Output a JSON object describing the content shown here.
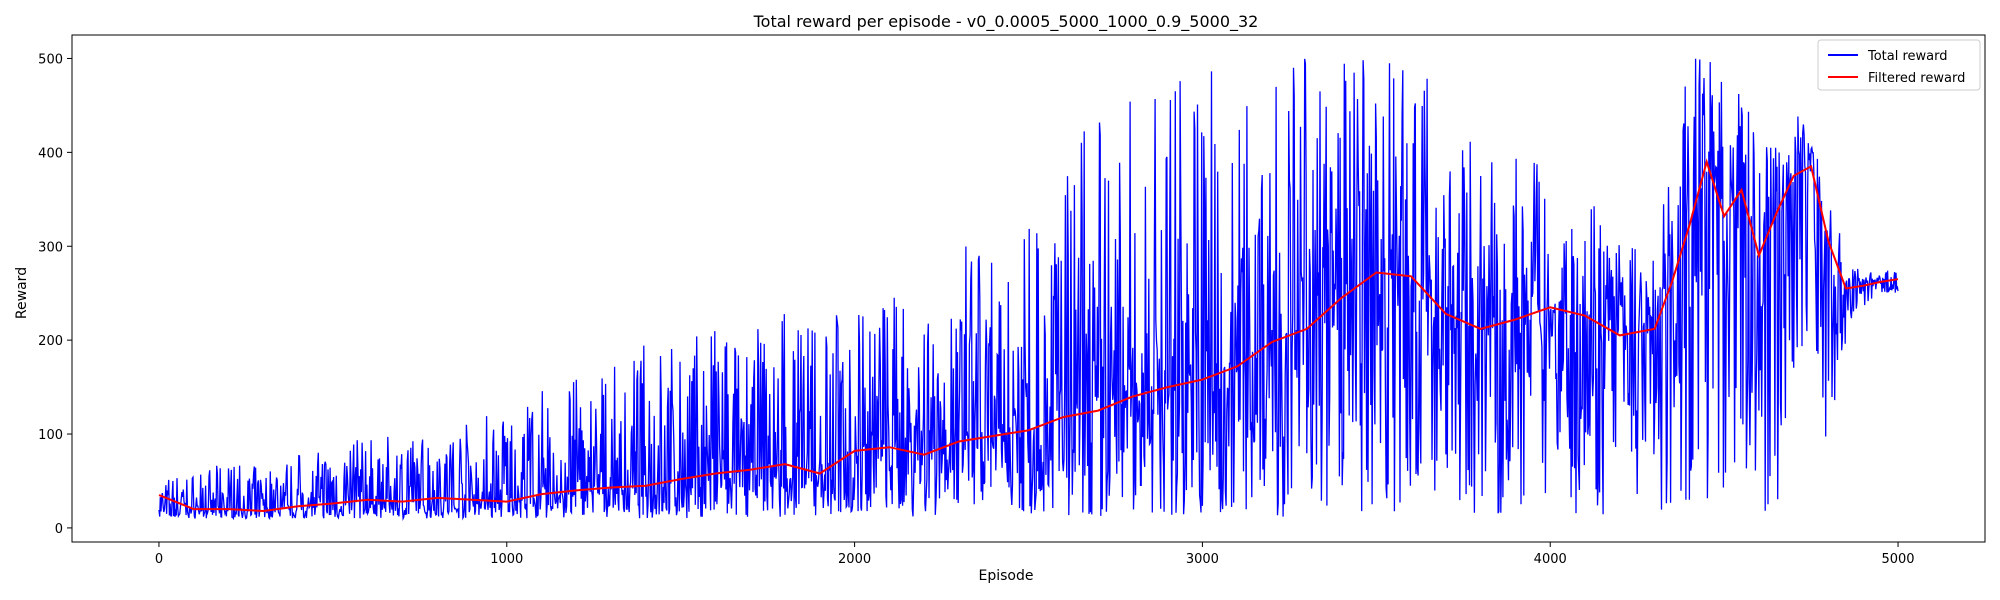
{
  "chart_data": {
    "type": "line",
    "title": "Total reward per episode - v0_0.0005_5000_1000_0.9_5000_32",
    "xlabel": "Episode",
    "ylabel": "Reward",
    "xlim": [
      -250,
      5250
    ],
    "ylim": [
      -15,
      525
    ],
    "xticks": [
      0,
      1000,
      2000,
      3000,
      4000,
      5000
    ],
    "yticks": [
      0,
      100,
      200,
      300,
      400,
      500
    ],
    "grid": false,
    "legend_position": "top-right",
    "series": [
      {
        "name": "Total reward",
        "color": "#0000ff",
        "x": [
          0,
          100,
          200,
          300,
          400,
          500,
          600,
          700,
          800,
          900,
          1000,
          1100,
          1200,
          1300,
          1400,
          1500,
          1600,
          1700,
          1800,
          1900,
          2000,
          2100,
          2200,
          2300,
          2400,
          2500,
          2600,
          2700,
          2800,
          2900,
          3000,
          3100,
          3200,
          3300,
          3400,
          3500,
          3600,
          3700,
          3800,
          3900,
          4000,
          4100,
          4200,
          4300,
          4350,
          4400,
          4450,
          4500,
          4550,
          4600,
          4650,
          4700,
          4750,
          4800,
          4850,
          4900,
          4950,
          5000
        ],
        "y": [
          20,
          19,
          20,
          18,
          22,
          25,
          28,
          27,
          30,
          29,
          28,
          35,
          40,
          42,
          46,
          55,
          58,
          62,
          65,
          60,
          85,
          88,
          80,
          95,
          100,
          105,
          125,
          130,
          145,
          150,
          160,
          175,
          200,
          215,
          250,
          275,
          265,
          225,
          210,
          220,
          230,
          225,
          205,
          210,
          265,
          320,
          385,
          330,
          360,
          300,
          330,
          370,
          380,
          300,
          255,
          260,
          262,
          265
        ],
        "envelope_low": [
          10,
          10,
          10,
          10,
          10,
          10,
          10,
          10,
          10,
          10,
          10,
          10,
          10,
          10,
          10,
          10,
          10,
          10,
          12,
          12,
          12,
          12,
          12,
          12,
          12,
          12,
          12,
          12,
          12,
          12,
          12,
          12,
          12,
          12,
          12,
          12,
          12,
          12,
          12,
          12,
          12,
          12,
          12,
          12,
          15,
          15,
          15,
          15,
          15,
          15,
          15,
          150,
          200,
          60,
          200,
          235,
          250,
          250
        ],
        "envelope_high": [
          55,
          60,
          70,
          65,
          80,
          85,
          100,
          95,
          110,
          115,
          140,
          150,
          160,
          170,
          200,
          200,
          215,
          210,
          240,
          230,
          235,
          250,
          270,
          300,
          310,
          330,
          420,
          440,
          460,
          480,
          500,
          500,
          500,
          500,
          500,
          500,
          500,
          470,
          420,
          400,
          380,
          360,
          310,
          290,
          400,
          500,
          500,
          500,
          470,
          420,
          430,
          450,
          420,
          360,
          290,
          270,
          275,
          275
        ]
      },
      {
        "name": "Filtered reward",
        "color": "#ff0000",
        "x": [
          0,
          100,
          200,
          300,
          400,
          500,
          600,
          700,
          800,
          900,
          1000,
          1100,
          1200,
          1300,
          1400,
          1500,
          1600,
          1700,
          1800,
          1900,
          2000,
          2100,
          2200,
          2300,
          2400,
          2500,
          2600,
          2700,
          2800,
          2900,
          3000,
          3100,
          3200,
          3300,
          3400,
          3500,
          3600,
          3700,
          3800,
          3900,
          4000,
          4100,
          4200,
          4300,
          4350,
          4400,
          4450,
          4500,
          4550,
          4600,
          4650,
          4700,
          4750,
          4800,
          4850,
          4900,
          4950,
          5000
        ],
        "y": [
          35,
          20,
          20,
          18,
          23,
          26,
          30,
          28,
          32,
          30,
          28,
          36,
          40,
          43,
          45,
          52,
          58,
          62,
          68,
          58,
          82,
          86,
          78,
          92,
          98,
          104,
          118,
          125,
          140,
          150,
          158,
          172,
          198,
          212,
          245,
          272,
          268,
          228,
          212,
          222,
          235,
          226,
          205,
          212,
          262,
          322,
          390,
          332,
          360,
          290,
          335,
          375,
          385,
          305,
          255,
          258,
          262,
          265
        ]
      }
    ]
  }
}
